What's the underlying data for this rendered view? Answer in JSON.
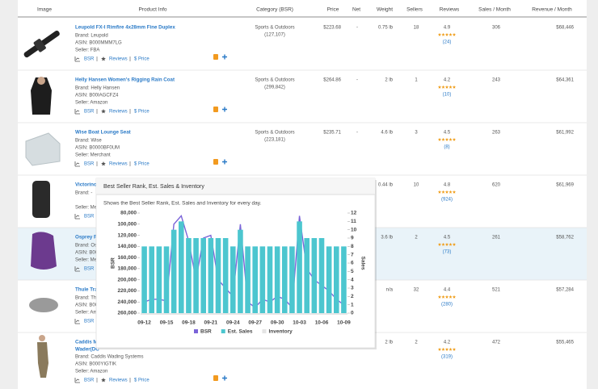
{
  "table": {
    "headers": [
      "Image",
      "Product Info",
      "Category (BSR)",
      "Price",
      "Net",
      "Weight",
      "Sellers",
      "Reviews",
      "Sales / Month",
      "Revenue / Month"
    ],
    "actions": [
      "BSR",
      "Reviews",
      "$ Price"
    ],
    "rows": [
      {
        "title": "Leupold FX-I Rimfire 4x28mm Fine Duplex",
        "brand": "Brand: Leupold",
        "asin": "ASIN: B000MMM7LG",
        "seller": "Seller: FBA",
        "category": "Sports & Outdoors",
        "bsr": "(127,107)",
        "price": "$223.68",
        "net": "-",
        "weight": "0.75 lb",
        "sellers": 18,
        "rating": 4.9,
        "reviews": "(24)",
        "sales": 306,
        "revenue": "$68,446"
      },
      {
        "title": "Helly Hansen Women's Rigging Rain Coat",
        "brand": "Brand: Helly Hansen",
        "asin": "ASIN: B00IAGCFZ4",
        "seller": "Seller: Amazon",
        "category": "Sports & Outdoors",
        "bsr": "(299,842)",
        "price": "$264.86",
        "net": "-",
        "weight": "2 lb",
        "sellers": 1,
        "rating": 4.2,
        "reviews": "(10)",
        "sales": 243,
        "revenue": "$64,361"
      },
      {
        "title": "Wise Boat Lounge Seat",
        "brand": "Brand: Wise",
        "asin": "ASIN: B0000BF0UM",
        "seller": "Seller: Merchant",
        "category": "Sports & Outdoors",
        "bsr": "(223,181)",
        "price": "$235.71",
        "net": "-",
        "weight": "4.6 lb",
        "sellers": 3,
        "rating": 4.5,
        "reviews": "(8)",
        "sales": 263,
        "revenue": "$61,992"
      },
      {
        "title": "Victorinox",
        "brand": "Brand: -",
        "seller": "Seller: Merc",
        "weight": "0.44 lb",
        "sellers": 10,
        "rating": 4.8,
        "reviews": "(924)",
        "sales": 620,
        "revenue": "$61,969"
      },
      {
        "title": "Osprey Pa",
        "brand": "Brand: Osp",
        "asin": "ASIN: B00",
        "seller": "Seller: Merc",
        "weight": "3.6 lb",
        "sellers": 2,
        "rating": 4.5,
        "reviews": "(73)",
        "sales": 261,
        "revenue": "$58,762"
      },
      {
        "title": "Thule Trav",
        "brand": "Brand: Thul",
        "asin": "ASIN: B00",
        "seller": "Seller: Ama",
        "weight": "n/a",
        "sellers": 32,
        "rating": 4.4,
        "reviews": "(280)",
        "sales": 521,
        "revenue": "$57,284"
      },
      {
        "title": "Caddis Mo",
        "title2": "Wader(DC",
        "brand": "Brand: Caddis Wading Systems",
        "asin": "ASIN: B000YIGTIK",
        "seller": "Seller: Amazon",
        "weight": "2 lb",
        "sellers": 2,
        "rating": 4.2,
        "reviews": "(319)",
        "sales": 472,
        "revenue": "$55,465"
      }
    ]
  },
  "chart_data": {
    "type": "bar_line",
    "title": "Best Seller Rank, Est. Sales & Inventory",
    "subtitle": "Shows the Best Seller Rank, Est. Sales and Inventory for every day.",
    "ylabel": "BSR",
    "y2label": "Sales",
    "categories": [
      "09-12",
      null,
      null,
      "09-15",
      null,
      null,
      "09-18",
      null,
      null,
      "09-21",
      null,
      null,
      "09-24",
      null,
      null,
      "09-27",
      null,
      null,
      "09-30",
      null,
      null,
      "10-03",
      null,
      null,
      "10-06",
      null,
      null,
      "10-09"
    ],
    "series": [
      {
        "name": "BSR",
        "color": "#7b64d8",
        "kind": "line",
        "axis": "y",
        "values": [
          240000,
          235000,
          235000,
          238000,
          100000,
          85000,
          130000,
          200000,
          125000,
          120000,
          200000,
          215000,
          230000,
          100000,
          240000,
          250000,
          235000,
          240000,
          230000,
          235000,
          250000,
          85000,
          180000,
          200000,
          210000,
          220000,
          235000,
          245000
        ]
      },
      {
        "name": "Est. Sales",
        "color": "#4cc6cf",
        "kind": "bar",
        "axis": "y2",
        "values": [
          8,
          8,
          8,
          8,
          10,
          11,
          9,
          9,
          9,
          9,
          9,
          9,
          8,
          10,
          8,
          8,
          8,
          8,
          8,
          8,
          8,
          11,
          9,
          9,
          9,
          8,
          8,
          8
        ]
      },
      {
        "name": "Inventory",
        "color": "#e4e4e4",
        "kind": "line",
        "axis": "y2",
        "values": [
          null,
          null,
          null,
          null,
          null,
          null,
          null,
          null,
          null,
          null,
          null,
          null,
          null,
          null,
          null,
          null,
          null,
          null,
          null,
          null,
          null,
          null,
          null,
          null,
          null,
          null,
          null,
          null
        ]
      }
    ],
    "ylim": [
      260000,
      80000
    ],
    "yticks": [
      {
        "value": 80000,
        "label": "80,000"
      },
      {
        "value": 100000,
        "label": "100,000"
      },
      {
        "value": 120000,
        "label": "120,000"
      },
      {
        "value": 140000,
        "label": "140,000"
      },
      {
        "value": 160000,
        "label": "160,000"
      },
      {
        "value": 180000,
        "label": "180,000"
      },
      {
        "value": 200000,
        "label": "200,000"
      },
      {
        "value": 220000,
        "label": "220,000"
      },
      {
        "value": 240000,
        "label": "240,000"
      },
      {
        "value": 260000,
        "label": "260,000"
      }
    ],
    "y2lim": [
      0,
      12
    ],
    "y2ticks": [
      0,
      1,
      2,
      3,
      4,
      5,
      6,
      7,
      8,
      9,
      10,
      11,
      12
    ]
  }
}
